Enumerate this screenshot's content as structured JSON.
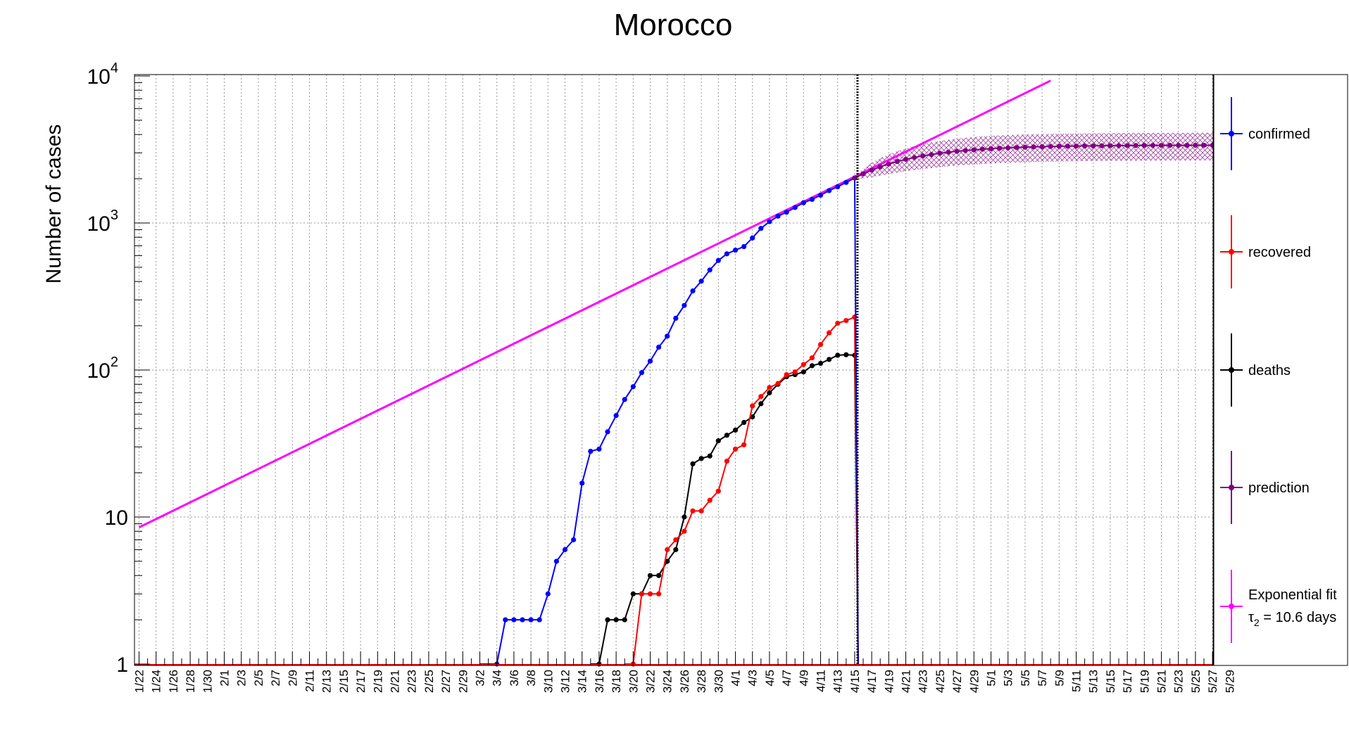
{
  "chart_data": {
    "type": "line",
    "title": "Morocco",
    "ylabel": "Number of cases",
    "xlabel": "",
    "yscale": "log",
    "ylim": [
      1,
      10000
    ],
    "y_tick_labels": [
      {
        "value": 1,
        "label": "1"
      },
      {
        "value": 10,
        "label": "10"
      },
      {
        "value": 100,
        "label": "10",
        "sup": "2"
      },
      {
        "value": 1000,
        "label": "10",
        "sup": "3"
      },
      {
        "value": 10000,
        "label": "10",
        "sup": "4"
      }
    ],
    "x_start": "1/22",
    "x_end_index": 131,
    "x_tick_labels": [
      "1/22",
      "1/24",
      "1/26",
      "1/28",
      "1/30",
      "2/1",
      "2/3",
      "2/5",
      "2/7",
      "2/9",
      "2/11",
      "2/13",
      "2/15",
      "2/17",
      "2/19",
      "2/21",
      "2/23",
      "2/25",
      "2/27",
      "2/29",
      "3/2",
      "3/4",
      "3/6",
      "3/8",
      "3/10",
      "3/12",
      "3/14",
      "3/16",
      "3/18",
      "3/20",
      "3/22",
      "3/24",
      "3/26",
      "3/28",
      "3/30",
      "4/1",
      "4/3",
      "4/5",
      "4/7",
      "4/9",
      "4/11",
      "4/13",
      "4/15",
      "4/17",
      "4/19",
      "4/21",
      "4/23",
      "4/25",
      "4/27",
      "4/29",
      "5/1",
      "5/3",
      "5/5",
      "5/7",
      "5/9",
      "5/11",
      "5/13",
      "5/15",
      "5/17",
      "5/19",
      "5/21",
      "5/23",
      "5/25",
      "5/27",
      "5/29"
    ],
    "grid": true,
    "vertical_marker_date": "4/15",
    "legend_position": "right",
    "series": [
      {
        "name": "confirmed",
        "color": "#0000ff",
        "start_date": "3/2",
        "values": [
          0,
          0,
          1,
          2,
          2,
          2,
          2,
          2,
          3,
          5,
          6,
          7,
          17,
          28,
          29,
          38,
          49,
          63,
          77,
          96,
          115,
          143,
          170,
          225,
          275,
          345,
          402,
          479,
          556,
          617,
          654,
          691,
          791,
          919,
          1021,
          1113,
          1184,
          1275,
          1374,
          1448,
          1545,
          1661,
          1763,
          1888,
          2024
        ]
      },
      {
        "name": "recovered",
        "color": "#ff0000",
        "start_date": "3/19",
        "values": [
          0,
          1,
          3,
          3,
          3,
          6,
          7,
          8,
          11,
          11,
          13,
          15,
          24,
          29,
          31,
          57,
          66,
          76,
          81,
          93,
          97,
          109,
          121,
          149,
          179,
          208,
          217,
          229
        ]
      },
      {
        "name": "deaths",
        "color": "#000000",
        "start_date": "3/15",
        "values": [
          0,
          1,
          2,
          2,
          2,
          3,
          3,
          4,
          4,
          5,
          6,
          10,
          23,
          25,
          26,
          33,
          36,
          39,
          44,
          48,
          59,
          70,
          80,
          90,
          93,
          97,
          107,
          111,
          118,
          126,
          127,
          126
        ]
      },
      {
        "name": "prediction",
        "color": "#800080",
        "start_date": "4/15",
        "values": [
          2024,
          2160,
          2290,
          2410,
          2520,
          2620,
          2710,
          2790,
          2860,
          2920,
          2980,
          3030,
          3075,
          3110,
          3145,
          3175,
          3200,
          3225,
          3245,
          3262,
          3278,
          3292,
          3304,
          3314,
          3323,
          3331,
          3338,
          3344,
          3349,
          3353,
          3357,
          3360,
          3363,
          3366,
          3368,
          3370,
          3372,
          3374,
          3375,
          3376,
          3377,
          3378,
          3379,
          3380,
          3380,
          3381
        ],
        "band_low": [
          1950,
          2010,
          2050,
          2100,
          2150,
          2200,
          2250,
          2290,
          2330,
          2360,
          2400,
          2430,
          2460,
          2480,
          2500,
          2520,
          2540,
          2555,
          2570,
          2580,
          2590,
          2600,
          2610,
          2615,
          2620,
          2625,
          2630,
          2635,
          2640,
          2643,
          2646,
          2648,
          2650,
          2652,
          2654,
          2656,
          2657,
          2658,
          2659,
          2660,
          2661,
          2662,
          2663,
          2664,
          2664,
          2665
        ],
        "band_high": [
          2100,
          2330,
          2560,
          2760,
          2930,
          3080,
          3200,
          3330,
          3440,
          3530,
          3610,
          3680,
          3740,
          3800,
          3840,
          3880,
          3910,
          3940,
          3960,
          3980,
          4000,
          4010,
          4020,
          4030,
          4040,
          4050,
          4060,
          4065,
          4070,
          4075,
          4080,
          4085,
          4090,
          4092,
          4094,
          4096,
          4098,
          4100,
          4102,
          4104,
          4106,
          4108,
          4110,
          4112,
          4114,
          4115
        ]
      },
      {
        "name": "Exponential fit",
        "sublabel": "τ₂ = 10.6 days",
        "color": "#ff00ff",
        "type": "exponential",
        "x_range": [
          "1/22",
          "5/8"
        ],
        "y_at_start": 8.5,
        "doubling_days": 10.6
      }
    ]
  },
  "legend": {
    "items": [
      {
        "label": "confirmed",
        "color": "#0000ff"
      },
      {
        "label": "recovered",
        "color": "#ff0000"
      },
      {
        "label": "deaths",
        "color": "#000000"
      },
      {
        "label": "prediction",
        "color": "#800080"
      },
      {
        "label": "Exponential fit",
        "label2_main": "τ",
        "label2_sub": "2",
        "label2_rest": " = 10.6 days",
        "color": "#ff00ff"
      }
    ]
  }
}
